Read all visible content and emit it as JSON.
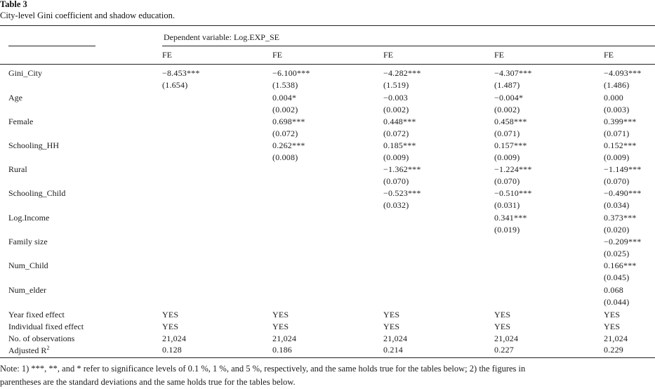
{
  "table": {
    "label": "Table 3",
    "caption": "City-level Gini coefficient and shadow education.",
    "dep_var": "Dependent variable: Log.EXP_SE",
    "col_headers": [
      "FE",
      "FE",
      "FE",
      "FE",
      "FE"
    ],
    "rows": [
      {
        "name": "Gini_City",
        "cells": [
          [
            "−8.453***",
            "(1.654)"
          ],
          [
            "−6.100***",
            "(1.538)"
          ],
          [
            "−4.282***",
            "(1.519)"
          ],
          [
            "−4.307***",
            "(1.487)"
          ],
          [
            "−4.093***",
            "(1.486)"
          ]
        ]
      },
      {
        "name": "Age",
        "cells": [
          [
            "",
            ""
          ],
          [
            "0.004*",
            "(0.002)"
          ],
          [
            "−0.003",
            "(0.002)"
          ],
          [
            "−0.004*",
            "(0.002)"
          ],
          [
            "0.000",
            "(0.003)"
          ]
        ]
      },
      {
        "name": "Female",
        "cells": [
          [
            "",
            ""
          ],
          [
            "0.698***",
            "(0.072)"
          ],
          [
            "0.448***",
            "(0.072)"
          ],
          [
            "0.458***",
            "(0.071)"
          ],
          [
            "0.399***",
            "(0.071)"
          ]
        ]
      },
      {
        "name": "Schooling_HH",
        "cells": [
          [
            "",
            ""
          ],
          [
            "0.262***",
            "(0.008)"
          ],
          [
            "0.185***",
            "(0.009)"
          ],
          [
            "0.157***",
            "(0.009)"
          ],
          [
            "0.152***",
            "(0.009)"
          ]
        ]
      },
      {
        "name": "Rural",
        "cells": [
          [
            "",
            ""
          ],
          [
            "",
            ""
          ],
          [
            "−1.362***",
            "(0.070)"
          ],
          [
            "−1.224***",
            "(0.070)"
          ],
          [
            "−1.149***",
            "(0.070)"
          ]
        ]
      },
      {
        "name": "Schooling_Child",
        "cells": [
          [
            "",
            ""
          ],
          [
            "",
            ""
          ],
          [
            "−0.523***",
            "(0.032)"
          ],
          [
            "−0.510***",
            "(0.031)"
          ],
          [
            "−0.490***",
            "(0.034)"
          ]
        ]
      },
      {
        "name": "Log.Income",
        "cells": [
          [
            "",
            ""
          ],
          [
            "",
            ""
          ],
          [
            "",
            ""
          ],
          [
            "0.341***",
            "(0.019)"
          ],
          [
            "0.373***",
            "(0.020)"
          ]
        ]
      },
      {
        "name": "Family size",
        "cells": [
          [
            "",
            ""
          ],
          [
            "",
            ""
          ],
          [
            "",
            ""
          ],
          [
            "",
            ""
          ],
          [
            "−0.209***",
            "(0.025)"
          ]
        ]
      },
      {
        "name": "Num_Child",
        "cells": [
          [
            "",
            ""
          ],
          [
            "",
            ""
          ],
          [
            "",
            ""
          ],
          [
            "",
            ""
          ],
          [
            "0.166***",
            "(0.045)"
          ]
        ]
      },
      {
        "name": "Num_elder",
        "cells": [
          [
            "",
            ""
          ],
          [
            "",
            ""
          ],
          [
            "",
            ""
          ],
          [
            "",
            ""
          ],
          [
            "0.068",
            "(0.044)"
          ]
        ]
      }
    ],
    "footer_rows": [
      {
        "name": "Year fixed effect",
        "cells": [
          "YES",
          "YES",
          "YES",
          "YES",
          "YES"
        ]
      },
      {
        "name": "Individual fixed effect",
        "cells": [
          "YES",
          "YES",
          "YES",
          "YES",
          "YES"
        ]
      },
      {
        "name": "No. of observations",
        "cells": [
          "21,024",
          "21,024",
          "21,024",
          "21,024",
          "21,024"
        ]
      },
      {
        "name": "Adjusted R",
        "cells": [
          "0.128",
          "0.186",
          "0.214",
          "0.227",
          "0.229"
        ]
      }
    ],
    "adj_r_sup": "2",
    "note_line1": "Note: 1) ***, **, and * refer to significance levels of 0.1 %, 1 %, and 5 %, respectively, and the same holds true for the tables below; 2) the figures in",
    "note_line2": "parentheses are the standard deviations and the same holds true for the tables below."
  }
}
